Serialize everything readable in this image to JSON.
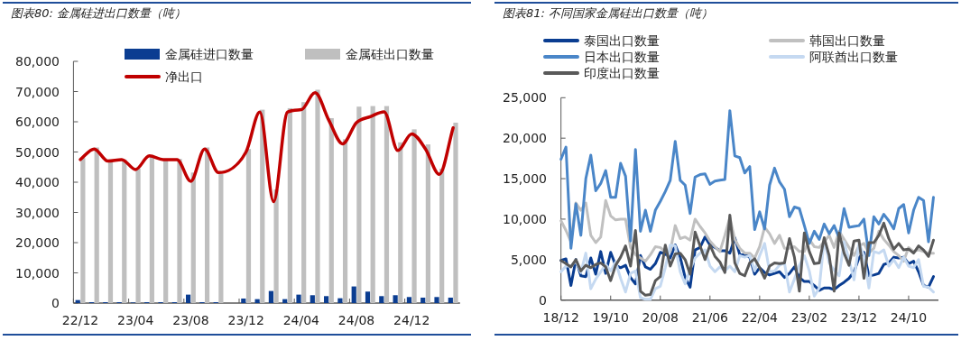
{
  "chart_data": [
    {
      "type": "bar",
      "title": "图表80: 金属硅进出口数量（吨）",
      "legend": "top",
      "categories": [
        "22/12",
        null,
        null,
        null,
        "23/04",
        null,
        null,
        null,
        "23/08",
        null,
        null,
        null,
        "23/12",
        null,
        null,
        null,
        "24/04",
        null,
        null,
        null,
        "24/08",
        null,
        null,
        null,
        "24/12",
        null,
        null,
        null
      ],
      "ylim": [
        0,
        80000
      ],
      "yticks": [
        0,
        {
          "value": 10000,
          "label": "10,000"
        },
        {
          "value": 20000,
          "label": "20,000"
        },
        {
          "value": 30000,
          "label": "30,000"
        },
        {
          "value": 40000,
          "label": "40,000"
        },
        {
          "value": 50000,
          "label": "50,000"
        },
        {
          "value": 60000,
          "label": "60,000"
        },
        {
          "value": 70000,
          "label": "70,000"
        },
        {
          "value": 80000,
          "label": "80,000"
        }
      ],
      "series": [
        {
          "name": "金属硅进口数量",
          "color": "#0b3d91",
          "values": [
            1000,
            300,
            300,
            300,
            200,
            300,
            300,
            300,
            2800,
            300,
            300,
            null,
            1500,
            1300,
            4000,
            1300,
            2800,
            2600,
            2300,
            1600,
            5500,
            3800,
            2300,
            2600,
            2000,
            1800,
            2000,
            1800
          ]
        },
        {
          "name": "金属硅出口数量",
          "color": "#bfbfbf",
          "values": [
            48000,
            51500,
            47500,
            47500,
            44500,
            49000,
            47500,
            47700,
            43200,
            51500,
            42800,
            null,
            51000,
            64000,
            37600,
            64500,
            66500,
            70600,
            61200,
            54200,
            65000,
            65200,
            65200,
            53200,
            57500,
            52500,
            44500,
            59700
          ]
        },
        {
          "name": "净出口",
          "type": "line",
          "color": "#c00000",
          "values": [
            47500,
            51000,
            47000,
            47500,
            44200,
            48700,
            47500,
            47500,
            40300,
            51000,
            43200,
            null,
            50000,
            63200,
            33600,
            63200,
            64000,
            69600,
            60500,
            52700,
            59700,
            61700,
            63300,
            50500,
            56000,
            51000,
            42600,
            58000
          ]
        }
      ]
    },
    {
      "type": "line",
      "title": "图表81: 不同国家金属硅出口数量（吨）",
      "legend": "top left",
      "categories": [
        "18/12",
        null,
        null,
        null,
        null,
        null,
        null,
        null,
        null,
        null,
        "19/10",
        null,
        null,
        null,
        null,
        null,
        null,
        null,
        null,
        null,
        "20/08",
        null,
        null,
        null,
        null,
        null,
        null,
        null,
        null,
        null,
        "21/06",
        null,
        null,
        null,
        null,
        null,
        null,
        null,
        null,
        null,
        "22/04",
        null,
        null,
        null,
        null,
        null,
        null,
        null,
        null,
        null,
        "23/02",
        null,
        null,
        null,
        null,
        null,
        null,
        null,
        null,
        null,
        "23/12",
        null,
        null,
        null,
        null,
        null,
        null,
        null,
        null,
        null,
        "24/10",
        null,
        null,
        null,
        null,
        null
      ],
      "ylim": [
        0,
        25000
      ],
      "yticks": [
        0,
        {
          "value": 5000,
          "label": "5,000"
        },
        {
          "value": 10000,
          "label": "10,000"
        },
        {
          "value": 15000,
          "label": "15,000"
        },
        {
          "value": 20000,
          "label": "20,000"
        },
        {
          "value": 25000,
          "label": "25,000"
        }
      ],
      "series": [
        {
          "name": "泰国出口数量",
          "color": "#0a3d91",
          "values": [
            4900,
            5100,
            1800,
            5000,
            3000,
            2900,
            5200,
            3200,
            6000,
            3300,
            5900,
            4300,
            4000,
            4300,
            2800,
            2000,
            5500,
            4100,
            3800,
            4500,
            5900,
            5700,
            5200,
            6800,
            5300,
            2800,
            1600,
            6200,
            6500,
            7800,
            6800,
            6500,
            6100,
            6100,
            5800,
            7700,
            5600,
            5600,
            5300,
            3200,
            4000,
            3400,
            3100,
            3300,
            3500,
            2800,
            3300,
            4100,
            2800,
            2300,
            2300,
            1800,
            1200,
            1500,
            1500,
            1300,
            1800,
            2200,
            2700,
            3500,
            5200,
            5900,
            3000,
            3100,
            3300,
            4400,
            4600,
            5300,
            5200,
            5300,
            4500,
            4800,
            3500,
            1800,
            1600,
            2900
          ]
        },
        {
          "name": "韩国出口数量",
          "color": "#c0c0c0",
          "values": [
            9800,
            8600,
            7200,
            12000,
            11100,
            12000,
            8000,
            7100,
            7800,
            12300,
            10400,
            9900,
            10000,
            10000,
            6500,
            5600,
            5200,
            4800,
            5600,
            6600,
            6500,
            6000,
            6000,
            9200,
            7600,
            7800,
            7400,
            10000,
            9100,
            8300,
            7300,
            6600,
            6000,
            8000,
            10200,
            7500,
            6400,
            5800,
            5800,
            5200,
            6600,
            9000,
            8200,
            7000,
            8000,
            6400,
            6400,
            6600,
            6000,
            6000,
            7500,
            6600,
            6500,
            7200,
            8000,
            6500,
            8500,
            7500,
            6500,
            5500,
            6700,
            7000,
            5800,
            6400,
            8500,
            7500,
            6800,
            6000,
            5500,
            4800,
            6500,
            6000,
            6200,
            6000,
            5800,
            5800
          ]
        },
        {
          "name": "日本出口数量",
          "color": "#4a86c8",
          "values": [
            17400,
            18900,
            6400,
            11900,
            8000,
            15000,
            17900,
            13500,
            14400,
            16000,
            12700,
            12700,
            16900,
            15300,
            7300,
            18600,
            8500,
            11100,
            8500,
            11100,
            12200,
            13400,
            14800,
            19600,
            14800,
            14200,
            10700,
            15200,
            15500,
            15600,
            14300,
            14700,
            14800,
            14900,
            23400,
            17800,
            17600,
            15700,
            16500,
            8700,
            10900,
            8800,
            14200,
            16300,
            14600,
            13700,
            10300,
            11500,
            11300,
            9200,
            7000,
            8500,
            7500,
            9400,
            8200,
            9200,
            7700,
            11300,
            9000,
            9100,
            9200,
            10000,
            5500,
            10300,
            9400,
            10600,
            9800,
            8800,
            11300,
            11800,
            8300,
            11100,
            12700,
            12300,
            7200,
            12700
          ]
        },
        {
          "name": "阿联酋出口数量",
          "color": "#c5d9f1",
          "values": [
            3500,
            4200,
            4200,
            4800,
            3400,
            5800,
            1400,
            2600,
            3500,
            4400,
            3600,
            4700,
            2700,
            1000,
            3300,
            3600,
            300,
            100,
            100,
            1400,
            1700,
            4000,
            6800,
            6700,
            3500,
            2000,
            3800,
            5200,
            5800,
            6200,
            4200,
            3500,
            4100,
            3600,
            4200,
            3500,
            5500,
            5300,
            5500,
            3600,
            5500,
            7000,
            3500,
            3600,
            4300,
            4600,
            1000,
            2600,
            4300,
            5500,
            3600,
            500,
            1500,
            7500,
            4600,
            3700,
            3000,
            7200,
            5000,
            2500,
            7000,
            5500,
            1500,
            6000,
            5800,
            6200,
            4200,
            5000,
            4000,
            5300,
            4200,
            4000,
            5000,
            1700,
            1600,
            1000
          ]
        },
        {
          "name": "印度出口数量",
          "color": "#595959",
          "values": [
            4900,
            4500,
            4100,
            5000,
            3600,
            4300,
            4000,
            4400,
            4600,
            4100,
            2400,
            4300,
            5300,
            6700,
            4200,
            8600,
            1100,
            600,
            700,
            2400,
            2900,
            6800,
            4200,
            5700,
            5800,
            5000,
            3200,
            8400,
            6700,
            5000,
            6800,
            5400,
            4700,
            3400,
            10500,
            4600,
            3300,
            3000,
            4600,
            5100,
            4000,
            2700,
            4200,
            4600,
            4500,
            4600,
            7600,
            5300,
            1100,
            8300,
            6000,
            4500,
            4600,
            7700,
            5500,
            1100,
            8300,
            5800,
            4300,
            7300,
            7400,
            2700,
            7100,
            7100,
            8000,
            9500,
            7600,
            6300,
            7000,
            6200,
            6300,
            5800,
            6700,
            6200,
            5400,
            7400
          ]
        }
      ]
    }
  ]
}
